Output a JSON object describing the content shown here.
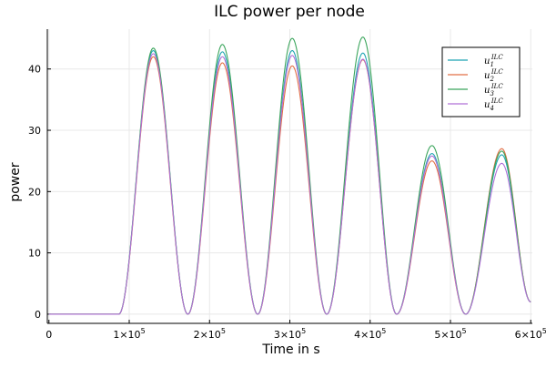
{
  "chart_data": {
    "type": "line",
    "title": "ILC power per node",
    "xlabel": "Time in s",
    "ylabel": "power",
    "xlim": [
      -2000,
      602000
    ],
    "ylim": [
      -1.5,
      46.5
    ],
    "grid": true,
    "legend_position": "top-right",
    "x_ticks": [
      {
        "value": 0,
        "label": "0"
      },
      {
        "value": 100000,
        "label": "1×10^5"
      },
      {
        "value": 200000,
        "label": "2×10^5"
      },
      {
        "value": 300000,
        "label": "3×10^5"
      },
      {
        "value": 400000,
        "label": "4×10^5"
      },
      {
        "value": 500000,
        "label": "5×10^5"
      },
      {
        "value": 600000,
        "label": "6×10^5"
      }
    ],
    "y_ticks": [
      0,
      10,
      20,
      30,
      40
    ],
    "peak_times": [
      130000,
      216000,
      303000,
      391000,
      477000,
      564000
    ],
    "trough_times": [
      173000,
      260000,
      346000,
      433000,
      519000
    ],
    "flat_until": 87000,
    "end_value": 2,
    "series": [
      {
        "name": "u_1^{ILC}",
        "color": "#1fa5b3",
        "peaks": [
          43.0,
          42.8,
          43.0,
          42.6,
          26.2,
          26.0
        ]
      },
      {
        "name": "u_2^{ILC}",
        "color": "#e26f46",
        "peaks": [
          42.0,
          41.0,
          40.5,
          41.5,
          25.0,
          27.0
        ]
      },
      {
        "name": "u_3^{ILC}",
        "color": "#3ba55c",
        "peaks": [
          43.4,
          44.0,
          45.0,
          45.2,
          27.5,
          26.6
        ]
      },
      {
        "name": "u_4^{ILC}",
        "color": "#b070d8",
        "peaks": [
          42.5,
          42.0,
          42.2,
          41.6,
          25.8,
          24.6
        ]
      }
    ]
  }
}
